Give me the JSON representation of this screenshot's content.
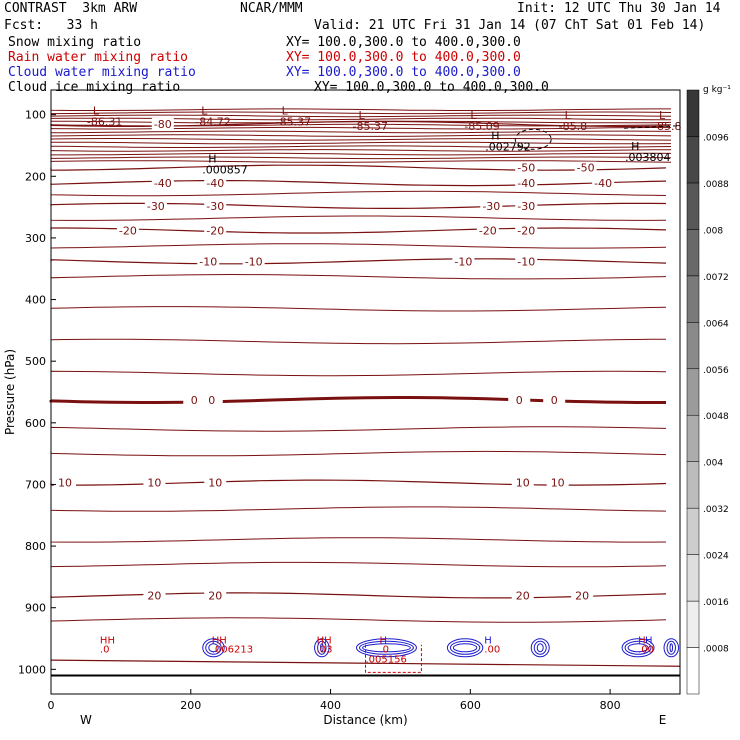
{
  "header": {
    "left_title": "CONTRAST  3km ARW",
    "center_title": "NCAR/MMM",
    "init": "Init: 12 UTC Thu 30 Jan 14",
    "fcst": "Fcst:   33 h",
    "valid": "Valid: 21 UTC Fri 31 Jan 14 (07 ChT Sat 01 Feb 14)",
    "fields": [
      {
        "label": "Snow mixing ratio",
        "xy": "XY= 100.0,300.0 to 400.0,300.0",
        "color": "#000000"
      },
      {
        "label": "Rain water mixing ratio",
        "xy": "XY= 100.0,300.0 to 400.0,300.0",
        "color": "#cc0000"
      },
      {
        "label": "Cloud water mixing ratio",
        "xy": "XY= 100.0,300.0 to 400.0,300.0",
        "color": "#1a1acc"
      },
      {
        "label": "Cloud ice mixing ratio",
        "xy": "XY= 100.0,300.0 to 400.0,300.0",
        "color": "#000000"
      }
    ]
  },
  "chart_data": {
    "type": "line",
    "xlabel": "Distance (km)",
    "ylabel": "Pressure (hPa)",
    "xlim": [
      0,
      900
    ],
    "ylim": [
      1040,
      60
    ],
    "x_ticks": [
      0,
      200,
      400,
      600,
      800
    ],
    "y_ticks": [
      100,
      200,
      300,
      400,
      500,
      600,
      700,
      800,
      900,
      1000
    ],
    "x_end_labels": {
      "left": "W",
      "right": "E"
    },
    "temperature_contours": [
      {
        "value": -80,
        "pressure": 115,
        "labels": [
          {
            "x": 160,
            "text": "-80"
          }
        ]
      },
      {
        "value": -50,
        "pressure": 186,
        "labels": [
          {
            "x": 680,
            "text": "-50"
          },
          {
            "x": 765,
            "text": "-50"
          }
        ]
      },
      {
        "value": -40,
        "pressure": 211,
        "labels": [
          {
            "x": 160,
            "text": "-40"
          },
          {
            "x": 235,
            "text": "-40"
          },
          {
            "x": 680,
            "text": "-40"
          },
          {
            "x": 790,
            "text": "-40"
          }
        ]
      },
      {
        "value": -30,
        "pressure": 248,
        "labels": [
          {
            "x": 150,
            "text": "-30"
          },
          {
            "x": 235,
            "text": "-30"
          },
          {
            "x": 630,
            "text": "-30"
          },
          {
            "x": 680,
            "text": "-30"
          }
        ]
      },
      {
        "value": -20,
        "pressure": 288,
        "labels": [
          {
            "x": 110,
            "text": "-20"
          },
          {
            "x": 235,
            "text": "-20"
          },
          {
            "x": 625,
            "text": "-20"
          },
          {
            "x": 680,
            "text": "-20"
          }
        ]
      },
      {
        "value": -10,
        "pressure": 338,
        "labels": [
          {
            "x": 225,
            "text": "-10"
          },
          {
            "x": 290,
            "text": "-10"
          },
          {
            "x": 590,
            "text": "-10"
          },
          {
            "x": 680,
            "text": "-10"
          }
        ]
      },
      {
        "value": 0,
        "pressure": 563,
        "bold": true,
        "labels": [
          {
            "x": 205,
            "text": "0"
          },
          {
            "x": 230,
            "text": "0"
          },
          {
            "x": 670,
            "text": "0"
          },
          {
            "x": 720,
            "text": "0"
          }
        ]
      },
      {
        "value": 10,
        "pressure": 697,
        "labels": [
          {
            "x": 20,
            "text": "10"
          },
          {
            "x": 148,
            "text": "10"
          },
          {
            "x": 235,
            "text": "10"
          },
          {
            "x": 675,
            "text": "10"
          },
          {
            "x": 725,
            "text": "10"
          }
        ]
      },
      {
        "value": 20,
        "pressure": 880,
        "labels": [
          {
            "x": 148,
            "text": "20"
          },
          {
            "x": 235,
            "text": "20"
          },
          {
            "x": 675,
            "text": "20"
          },
          {
            "x": 760,
            "text": "20"
          }
        ]
      }
    ],
    "extrema": [
      {
        "kind": "L",
        "x": 60,
        "y": 100,
        "value": "-86.31"
      },
      {
        "kind": "L",
        "x": 215,
        "y": 100,
        "value": "-84.72"
      },
      {
        "kind": "L",
        "x": 330,
        "y": 100,
        "value": "-85.37"
      },
      {
        "kind": "L",
        "x": 440,
        "y": 107,
        "value": "-85.37"
      },
      {
        "kind": "L",
        "x": 600,
        "y": 107,
        "value": "-85.09"
      },
      {
        "kind": "L",
        "x": 735,
        "y": 107,
        "value": "-85.8"
      },
      {
        "kind": "L",
        "x": 870,
        "y": 107,
        "value": "-85.8"
      },
      {
        "kind": "H",
        "x": 630,
        "y": 140,
        "value": ".002792"
      },
      {
        "kind": "H",
        "x": 830,
        "y": 157,
        "value": ".003804"
      },
      {
        "kind": "H",
        "x": 225,
        "y": 178,
        "value": ".000857"
      }
    ],
    "colorbar": {
      "unit": "g kg⁻¹",
      "ticks": [
        ".0008",
        ".0016",
        ".0024",
        ".0032",
        ".004",
        ".0048",
        ".0056",
        ".0064",
        ".0072",
        ".008",
        ".0088",
        ".0096"
      ]
    },
    "low_level_labels": [
      {
        "text": "HH",
        "x": 70,
        "color": "#cc0000"
      },
      {
        "text": ".0",
        "x": 70,
        "color": "#cc0000"
      },
      {
        "text": "HH",
        "x": 230,
        "color": "#cc0000"
      },
      {
        "text": ".006213",
        "x": 230,
        "color": "#cc0000"
      },
      {
        "text": "HH",
        "x": 380,
        "color": "#cc0000"
      },
      {
        "text": ".03",
        "x": 380,
        "color": "#cc0000"
      },
      {
        "text": "H",
        "x": 470,
        "color": "#cc0000"
      },
      {
        "text": ".0",
        "x": 470,
        "color": "#cc0000"
      },
      {
        "text": ".005156",
        "x": 450,
        "color": "#cc0000"
      },
      {
        "text": "H",
        "x": 620,
        "color": "#1a1acc"
      },
      {
        "text": ".00",
        "x": 620,
        "color": "#cc0000"
      },
      {
        "text": "H",
        "x": 850,
        "color": "#1a1acc"
      },
      {
        "text": "H",
        "x": 840,
        "color": "#cc0000"
      },
      {
        "text": ".00",
        "x": 840,
        "color": "#cc0000"
      }
    ]
  }
}
